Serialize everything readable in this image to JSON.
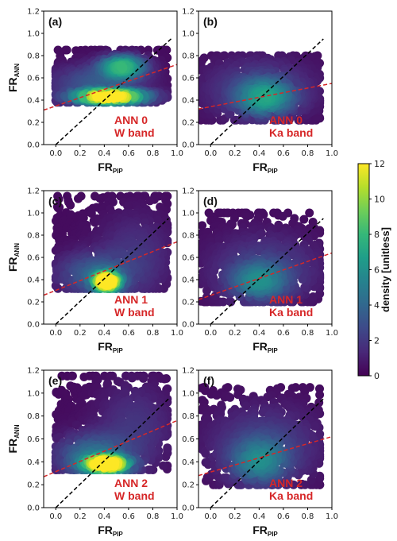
{
  "chart_data": [
    {
      "type": "scatter",
      "panel": "(a)",
      "annotation": [
        "ANN 0",
        "W band"
      ],
      "xlabel": "FR",
      "xlabel_sub": "PIP",
      "ylabel": "FR",
      "ylabel_sub": "ANN",
      "xlim": [
        -0.1,
        1.0
      ],
      "ylim": [
        0.0,
        1.2
      ],
      "xticks": [
        "0.0",
        "0.2",
        "0.4",
        "0.6",
        "0.8",
        "1.0"
      ],
      "yticks": [
        "0.0",
        "0.2",
        "0.4",
        "0.6",
        "0.8",
        "1.0",
        "1.2"
      ],
      "fit_line": {
        "x": [
          -0.1,
          1.0
        ],
        "y": [
          0.31,
          0.72
        ]
      },
      "one_to_one_line": {
        "x": [
          0.0,
          0.96
        ],
        "y": [
          0.0,
          0.96
        ]
      },
      "density_clusters": [
        {
          "x": 0.45,
          "y": 0.43,
          "sx": 0.2,
          "sy": 0.035,
          "peak": 12
        },
        {
          "x": 0.55,
          "y": 0.7,
          "sx": 0.12,
          "sy": 0.06,
          "peak": 7
        },
        {
          "x": 0.35,
          "y": 0.55,
          "sx": 0.25,
          "sy": 0.1,
          "peak": 3
        }
      ],
      "x_range": [
        0.0,
        0.92
      ],
      "y_range": [
        0.38,
        0.85
      ]
    },
    {
      "type": "scatter",
      "panel": "(b)",
      "annotation": [
        "ANN 0",
        "Ka band"
      ],
      "xlabel": "FR",
      "xlabel_sub": "PIP",
      "ylabel": "",
      "ylabel_sub": "",
      "xlim": [
        -0.1,
        1.0
      ],
      "ylim": [
        0.0,
        1.2
      ],
      "xticks": [
        "0.0",
        "0.2",
        "0.4",
        "0.6",
        "0.8",
        "1.0"
      ],
      "yticks": [
        "0.0",
        "0.2",
        "0.4",
        "0.6",
        "0.8",
        "1.0",
        "1.2"
      ],
      "fit_line": {
        "x": [
          -0.1,
          1.0
        ],
        "y": [
          0.32,
          0.55
        ]
      },
      "one_to_one_line": {
        "x": [
          0.0,
          0.93
        ],
        "y": [
          0.0,
          0.95
        ]
      },
      "density_clusters": [
        {
          "x": 0.45,
          "y": 0.42,
          "sx": 0.15,
          "sy": 0.1,
          "peak": 5
        },
        {
          "x": 0.4,
          "y": 0.5,
          "sx": 0.3,
          "sy": 0.18,
          "peak": 2
        }
      ],
      "x_range": [
        -0.08,
        0.9
      ],
      "y_range": [
        0.22,
        0.8
      ]
    },
    {
      "type": "scatter",
      "panel": "(c)",
      "annotation": [
        "ANN 1",
        "W band"
      ],
      "xlabel": "FR",
      "xlabel_sub": "PIP",
      "ylabel": "FR",
      "ylabel_sub": "ANN",
      "xlim": [
        -0.1,
        1.0
      ],
      "ylim": [
        0.0,
        1.2
      ],
      "xticks": [
        "0.0",
        "0.2",
        "0.4",
        "0.6",
        "0.8",
        "1.0"
      ],
      "yticks": [
        "0.0",
        "0.2",
        "0.4",
        "0.6",
        "0.8",
        "1.0",
        "1.2"
      ],
      "fit_line": {
        "x": [
          -0.1,
          1.0
        ],
        "y": [
          0.26,
          0.74
        ]
      },
      "one_to_one_line": {
        "x": [
          0.0,
          0.93
        ],
        "y": [
          0.0,
          0.95
        ]
      },
      "density_clusters": [
        {
          "x": 0.42,
          "y": 0.38,
          "sx": 0.07,
          "sy": 0.05,
          "peak": 12
        },
        {
          "x": 0.3,
          "y": 0.45,
          "sx": 0.2,
          "sy": 0.12,
          "peak": 3
        },
        {
          "x": 0.65,
          "y": 0.6,
          "sx": 0.2,
          "sy": 0.25,
          "peak": 1.5
        }
      ],
      "x_range": [
        0.0,
        0.92
      ],
      "y_range": [
        0.32,
        1.15
      ]
    },
    {
      "type": "scatter",
      "panel": "(d)",
      "annotation": [
        "ANN 1",
        "Ka band"
      ],
      "xlabel": "FR",
      "xlabel_sub": "PIP",
      "ylabel": "",
      "ylabel_sub": "",
      "xlim": [
        -0.1,
        1.0
      ],
      "ylim": [
        0.0,
        1.2
      ],
      "xticks": [
        "0.0",
        "0.2",
        "0.4",
        "0.6",
        "0.8",
        "1.0"
      ],
      "yticks": [
        "0.0",
        "0.2",
        "0.4",
        "0.6",
        "0.8",
        "1.0",
        "1.2"
      ],
      "fit_line": {
        "x": [
          -0.1,
          1.0
        ],
        "y": [
          0.22,
          0.64
        ]
      },
      "one_to_one_line": {
        "x": [
          0.0,
          0.93
        ],
        "y": [
          0.0,
          0.95
        ]
      },
      "density_clusters": [
        {
          "x": 0.4,
          "y": 0.38,
          "sx": 0.15,
          "sy": 0.1,
          "peak": 4
        },
        {
          "x": 0.45,
          "y": 0.5,
          "sx": 0.3,
          "sy": 0.2,
          "peak": 2
        }
      ],
      "x_range": [
        -0.08,
        0.9
      ],
      "y_range": [
        0.2,
        1.0
      ]
    },
    {
      "type": "scatter",
      "panel": "(e)",
      "annotation": [
        "ANN 2",
        "W band"
      ],
      "xlabel": "FR",
      "xlabel_sub": "PIP",
      "ylabel": "FR",
      "ylabel_sub": "ANN",
      "xlim": [
        -0.1,
        1.0
      ],
      "ylim": [
        0.0,
        1.2
      ],
      "xticks": [
        "0.0",
        "0.2",
        "0.4",
        "0.6",
        "0.8",
        "1.0"
      ],
      "yticks": [
        "0.0",
        "0.2",
        "0.4",
        "0.6",
        "0.8",
        "1.0",
        "1.2"
      ],
      "fit_line": {
        "x": [
          -0.1,
          1.0
        ],
        "y": [
          0.27,
          0.76
        ]
      },
      "one_to_one_line": {
        "x": [
          0.0,
          0.93
        ],
        "y": [
          0.0,
          0.95
        ]
      },
      "density_clusters": [
        {
          "x": 0.42,
          "y": 0.38,
          "sx": 0.12,
          "sy": 0.04,
          "peak": 12
        },
        {
          "x": 0.3,
          "y": 0.45,
          "sx": 0.2,
          "sy": 0.12,
          "peak": 4
        },
        {
          "x": 0.65,
          "y": 0.7,
          "sx": 0.2,
          "sy": 0.25,
          "peak": 1.5
        }
      ],
      "x_range": [
        0.0,
        0.92
      ],
      "y_range": [
        0.33,
        1.15
      ]
    },
    {
      "type": "scatter",
      "panel": "(f)",
      "annotation": [
        "ANN 2",
        "Ka band"
      ],
      "xlabel": "FR",
      "xlabel_sub": "PIP",
      "ylabel": "",
      "ylabel_sub": "",
      "xlim": [
        -0.1,
        1.0
      ],
      "ylim": [
        0.0,
        1.2
      ],
      "xticks": [
        "0.0",
        "0.2",
        "0.4",
        "0.6",
        "0.8",
        "1.0"
      ],
      "yticks": [
        "0.0",
        "0.2",
        "0.4",
        "0.6",
        "0.8",
        "1.0",
        "1.2"
      ],
      "fit_line": {
        "x": [
          -0.1,
          1.0
        ],
        "y": [
          0.28,
          0.62
        ]
      },
      "one_to_one_line": {
        "x": [
          0.0,
          0.93
        ],
        "y": [
          0.0,
          0.95
        ]
      },
      "density_clusters": [
        {
          "x": 0.4,
          "y": 0.4,
          "sx": 0.15,
          "sy": 0.12,
          "peak": 4
        },
        {
          "x": 0.45,
          "y": 0.55,
          "sx": 0.3,
          "sy": 0.22,
          "peak": 2
        }
      ],
      "x_range": [
        -0.08,
        0.9
      ],
      "y_range": [
        0.2,
        1.05
      ]
    }
  ],
  "colorbar": {
    "label": "density [unitless]",
    "ticks": [
      "0",
      "2",
      "4",
      "6",
      "8",
      "10",
      "12"
    ],
    "range": [
      0,
      12
    ],
    "colormap": "viridis",
    "colors": [
      "#440154",
      "#482878",
      "#3e4989",
      "#31688e",
      "#26828e",
      "#1f9e89",
      "#35b779",
      "#6ece58",
      "#b5de2b",
      "#fde725"
    ]
  },
  "colors": {
    "fit_line": "#d62728",
    "one_to_one_line": "#000000",
    "annotation": "#d62728"
  }
}
